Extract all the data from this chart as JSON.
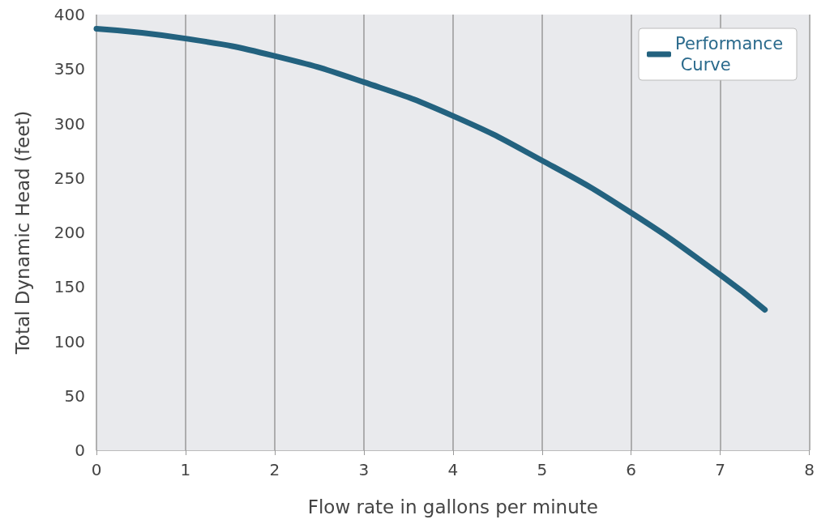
{
  "chart_data": {
    "type": "line",
    "xlabel": "Flow rate in gallons per minute",
    "ylabel": "Total Dynamic Head (feet)",
    "x": [
      0,
      1,
      2,
      3,
      4,
      5,
      6,
      7,
      7.5
    ],
    "series": [
      {
        "name": "Performance Curve",
        "color": "#23627f",
        "values": [
          387,
          378,
          362,
          338,
          307,
          266,
          218,
          161,
          129
        ]
      }
    ],
    "xlim": [
      0,
      8
    ],
    "xticks": [
      0,
      1,
      2,
      3,
      4,
      5,
      6,
      7,
      8
    ],
    "ylim": [
      0,
      400
    ],
    "yticks": [
      0,
      50,
      100,
      150,
      200,
      250,
      300,
      350,
      400
    ],
    "grid": "x",
    "legend": "top right",
    "marker": "none",
    "line_style": "solid"
  }
}
